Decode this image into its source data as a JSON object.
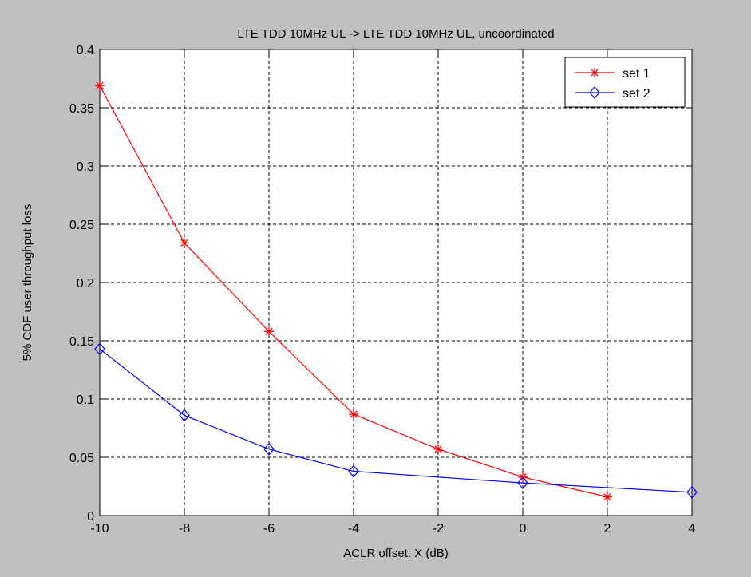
{
  "chart_data": {
    "type": "line",
    "title": "LTE TDD 10MHz UL -> LTE TDD 10MHz UL, uncoordinated",
    "xlabel": "ACLR offset: X (dB)",
    "ylabel": "5% CDF user throughput loss",
    "xlim": [
      -10,
      4
    ],
    "ylim": [
      0,
      0.4
    ],
    "xticks": [
      -10,
      -8,
      -6,
      -4,
      -2,
      0,
      2,
      4
    ],
    "yticks": [
      0,
      0.05,
      0.1,
      0.15,
      0.2,
      0.25,
      0.3,
      0.35,
      0.4
    ],
    "grid": true,
    "legend_position": "top-right",
    "series": [
      {
        "name": "set 1",
        "color": "#ff0000",
        "marker": "asterisk",
        "x": [
          -10,
          -8,
          -6,
          -4,
          -2,
          0,
          2
        ],
        "y": [
          0.369,
          0.234,
          0.158,
          0.087,
          0.057,
          0.033,
          0.016
        ]
      },
      {
        "name": "set 2",
        "color": "#0000ff",
        "marker": "diamond",
        "x": [
          -10,
          -8,
          -6,
          -4,
          0,
          4
        ],
        "y": [
          0.143,
          0.086,
          0.057,
          0.038,
          0.028,
          0.02
        ]
      }
    ]
  }
}
